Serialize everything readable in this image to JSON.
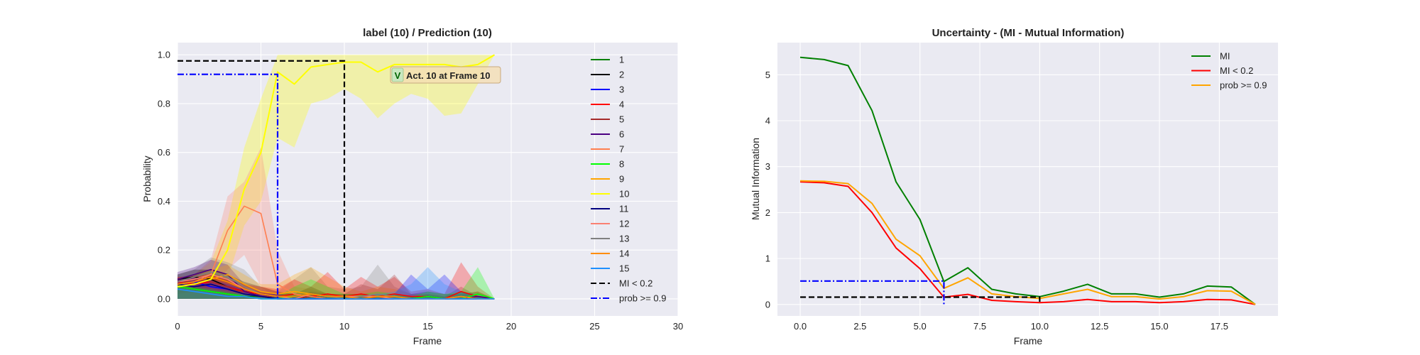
{
  "chart_data": [
    {
      "type": "line",
      "title": "label (10) / Prediction (10)",
      "xlabel": "Frame",
      "ylabel": "Probability",
      "xlim": [
        0,
        30
      ],
      "ylim": [
        -0.07,
        1.05
      ],
      "xticks": [
        "0",
        "5",
        "10",
        "15",
        "20",
        "25",
        "30"
      ],
      "yticks": [
        "0.0",
        "0.2",
        "0.4",
        "0.6",
        "0.8",
        "1.0"
      ],
      "grid": true,
      "legend_position": "right",
      "x": [
        0,
        1,
        2,
        3,
        4,
        5,
        6,
        7,
        8,
        9,
        10,
        11,
        12,
        13,
        14,
        15,
        16,
        17,
        18,
        19
      ],
      "series": [
        {
          "name": "1",
          "color": "#008000",
          "values": [
            0.05,
            0.04,
            0.03,
            0.02,
            0.01,
            0.01,
            0,
            0,
            0,
            0,
            0,
            0,
            0,
            0,
            0,
            0,
            0,
            0,
            0,
            0
          ]
        },
        {
          "name": "2",
          "color": "#000000",
          "values": [
            0.08,
            0.09,
            0.08,
            0.05,
            0.03,
            0.02,
            0.01,
            0,
            0.01,
            0,
            0,
            0,
            0,
            0,
            0,
            0,
            0,
            0,
            0,
            0
          ]
        },
        {
          "name": "3",
          "color": "#0000ff",
          "values": [
            0.06,
            0.07,
            0.05,
            0.04,
            0.02,
            0.01,
            0.01,
            0,
            0,
            0,
            0,
            0,
            0,
            0,
            0,
            0.01,
            0,
            0,
            0,
            0
          ]
        },
        {
          "name": "4",
          "color": "#ff0000",
          "values": [
            0.07,
            0.06,
            0.07,
            0.05,
            0.03,
            0.02,
            0.01,
            0.02,
            0.01,
            0.02,
            0.01,
            0.02,
            0.01,
            0.02,
            0.01,
            0.01,
            0,
            0.03,
            0.01,
            0
          ]
        },
        {
          "name": "5",
          "color": "#a52a2a",
          "values": [
            0.06,
            0.08,
            0.07,
            0.05,
            0.02,
            0.01,
            0.01,
            0,
            0.01,
            0,
            0,
            0.01,
            0,
            0.01,
            0,
            0,
            0,
            0.01,
            0,
            0
          ]
        },
        {
          "name": "6",
          "color": "#4b0082",
          "values": [
            0.08,
            0.1,
            0.12,
            0.1,
            0.03,
            0.01,
            0,
            0,
            0,
            0,
            0,
            0,
            0,
            0,
            0,
            0.01,
            0,
            0,
            0.01,
            0
          ]
        },
        {
          "name": "7",
          "color": "#ff7f50",
          "values": [
            0.06,
            0.07,
            0.1,
            0.28,
            0.38,
            0.35,
            0.06,
            0.02,
            0.01,
            0,
            0,
            0,
            0,
            0,
            0,
            0,
            0,
            0,
            0,
            0
          ]
        },
        {
          "name": "8",
          "color": "#00ff00",
          "values": [
            0.05,
            0.04,
            0.03,
            0.02,
            0.01,
            0,
            0,
            0.01,
            0.02,
            0.01,
            0,
            0,
            0.01,
            0,
            0,
            0.01,
            0,
            0,
            0.02,
            0
          ]
        },
        {
          "name": "9",
          "color": "#ffa500",
          "values": [
            0.05,
            0.06,
            0.08,
            0.1,
            0.06,
            0.03,
            0.02,
            0.03,
            0.02,
            0.01,
            0.01,
            0.01,
            0.01,
            0.01,
            0,
            0,
            0,
            0,
            0,
            0
          ]
        },
        {
          "name": "10",
          "color": "#ffff00",
          "values": [
            0.05,
            0.06,
            0.08,
            0.2,
            0.45,
            0.6,
            0.93,
            0.88,
            0.95,
            0.96,
            0.97,
            0.97,
            0.93,
            0.96,
            0.96,
            0.96,
            0.96,
            0.95,
            0.96,
            1.0
          ]
        },
        {
          "name": "11",
          "color": "#000080",
          "values": [
            0.06,
            0.05,
            0.06,
            0.04,
            0.02,
            0.01,
            0,
            0,
            0,
            0,
            0,
            0,
            0,
            0,
            0,
            0,
            0,
            0,
            0,
            0
          ]
        },
        {
          "name": "12",
          "color": "#fa8072",
          "values": [
            0.07,
            0.08,
            0.1,
            0.08,
            0.04,
            0.02,
            0.01,
            0,
            0.02,
            0.01,
            0.01,
            0.01,
            0.01,
            0,
            0,
            0,
            0,
            0.01,
            0,
            0
          ]
        },
        {
          "name": "13",
          "color": "#808080",
          "values": [
            0.07,
            0.09,
            0.11,
            0.09,
            0.05,
            0.02,
            0.01,
            0.01,
            0.02,
            0.01,
            0,
            0.01,
            0.02,
            0.01,
            0,
            0,
            0,
            0,
            0,
            0
          ]
        },
        {
          "name": "14",
          "color": "#ff8c00",
          "values": [
            0.06,
            0.07,
            0.09,
            0.07,
            0.04,
            0.02,
            0.01,
            0.01,
            0.02,
            0.01,
            0.01,
            0,
            0.01,
            0.01,
            0,
            0,
            0,
            0.01,
            0,
            0
          ]
        },
        {
          "name": "15",
          "color": "#1e90ff",
          "values": [
            0.04,
            0.03,
            0.02,
            0.01,
            0.01,
            0,
            0,
            0,
            0,
            0,
            0,
            0,
            0,
            0,
            0,
            0,
            0,
            0,
            0,
            0
          ]
        }
      ],
      "bands": [
        {
          "series": "10",
          "color": "#ffff00",
          "upper": [
            0.08,
            0.1,
            0.15,
            0.32,
            0.62,
            0.82,
            1.0,
            1.0,
            1.0,
            1.0,
            1.0,
            1.0,
            1.0,
            1.0,
            1.0,
            1.0,
            1.0,
            1.0,
            1.0,
            1.0
          ],
          "lower": [
            0.02,
            0.03,
            0.04,
            0.08,
            0.3,
            0.4,
            0.66,
            0.62,
            0.8,
            0.82,
            0.86,
            0.82,
            0.74,
            0.8,
            0.84,
            0.82,
            0.75,
            0.76,
            0.88,
            1.0
          ]
        },
        {
          "series": "7",
          "color": "#fa8072",
          "upper": [
            0.09,
            0.1,
            0.16,
            0.42,
            0.48,
            0.62,
            0.2,
            0.05,
            0.04,
            0.02,
            0.02,
            0.02,
            0.01,
            0,
            0,
            0,
            0,
            0,
            0,
            0
          ],
          "lower": [
            0.02,
            0.03,
            0.05,
            0.12,
            0.18,
            0.05,
            0,
            0,
            0,
            0,
            0,
            0,
            0,
            0,
            0,
            0,
            0,
            0,
            0,
            0
          ]
        },
        {
          "series": "13",
          "color": "#808080",
          "upper": [
            0.1,
            0.12,
            0.17,
            0.15,
            0.12,
            0.05,
            0.03,
            0.08,
            0.13,
            0.05,
            0.04,
            0.05,
            0.14,
            0.05,
            0.02,
            0.03,
            0.02,
            0.02,
            0.03,
            0
          ]
        },
        {
          "series": "6",
          "color": "#4b0082",
          "upper": [
            0.11,
            0.13,
            0.16,
            0.14,
            0.06,
            0.03,
            0.02,
            0.02,
            0.01,
            0.01,
            0,
            0.01,
            0,
            0,
            0.02,
            0.03,
            0.02,
            0.02,
            0.03,
            0
          ]
        },
        {
          "series": "2",
          "color": "#000000",
          "upper": [
            0.1,
            0.12,
            0.12,
            0.1,
            0.07,
            0.05,
            0.03,
            0.02,
            0.05,
            0.02,
            0.02,
            0.02,
            0.01,
            0.02,
            0.01,
            0.02,
            0.01,
            0.03,
            0.01,
            0
          ]
        },
        {
          "series": "9",
          "color": "#ffa500",
          "upper": [
            0.07,
            0.09,
            0.12,
            0.14,
            0.1,
            0.06,
            0.06,
            0.1,
            0.13,
            0.09,
            0.05,
            0.03,
            0.05,
            0.04,
            0.02,
            0.02,
            0.02,
            0.02,
            0.03,
            0
          ]
        },
        {
          "series": "4",
          "color": "#ff0000",
          "upper": [
            0.09,
            0.09,
            0.1,
            0.08,
            0.06,
            0.05,
            0.04,
            0.08,
            0.05,
            0.11,
            0.04,
            0.09,
            0.05,
            0.09,
            0.03,
            0.04,
            0.02,
            0.15,
            0.05,
            0
          ]
        },
        {
          "series": "5",
          "color": "#a52a2a",
          "upper": [
            0.08,
            0.1,
            0.1,
            0.08,
            0.04,
            0.03,
            0.02,
            0.01,
            0.03,
            0.02,
            0.02,
            0.06,
            0.04,
            0.1,
            0.02,
            0.02,
            0.01,
            0.05,
            0.01,
            0
          ]
        },
        {
          "series": "3",
          "color": "#0000ff",
          "upper": [
            0.08,
            0.09,
            0.08,
            0.06,
            0.04,
            0.02,
            0.02,
            0.01,
            0.01,
            0.01,
            0.01,
            0.01,
            0.02,
            0.02,
            0.1,
            0.04,
            0.1,
            0.03,
            0.01,
            0
          ]
        },
        {
          "series": "15",
          "color": "#1e90ff",
          "upper": [
            0.05,
            0.04,
            0.03,
            0.02,
            0.02,
            0.01,
            0.01,
            0.01,
            0.01,
            0.01,
            0.01,
            0.01,
            0.02,
            0.03,
            0.06,
            0.13,
            0.06,
            0.03,
            0.02,
            0
          ]
        },
        {
          "series": "8",
          "color": "#00ff00",
          "upper": [
            0.06,
            0.05,
            0.04,
            0.03,
            0.02,
            0.01,
            0.01,
            0.05,
            0.08,
            0.05,
            0.02,
            0.02,
            0.03,
            0.02,
            0.01,
            0.03,
            0.02,
            0.03,
            0.13,
            0
          ]
        }
      ],
      "threshold_lines": [
        {
          "name": "MI < 0.2",
          "color": "#000000",
          "style": "dashed",
          "x": 10,
          "y": 0.975
        },
        {
          "name": "prob >= 0.9",
          "color": "#0000ff",
          "style": "dashdot",
          "x": 6,
          "y": 0.92
        }
      ],
      "annotation": {
        "icon": "V",
        "text": "Act. 10 at Frame 10",
        "x": 13.7,
        "y": 0.905
      }
    },
    {
      "type": "line",
      "title": "Uncertainty - (MI - Mutual Information)",
      "xlabel": "Frame",
      "ylabel": "Mutual Information",
      "xlim": [
        -0.95,
        19.95
      ],
      "ylim": [
        -0.25,
        5.7
      ],
      "xticks": [
        "0.0",
        "2.5",
        "5.0",
        "7.5",
        "10.0",
        "12.5",
        "15.0",
        "17.5"
      ],
      "yticks": [
        "0",
        "1",
        "2",
        "3",
        "4",
        "5"
      ],
      "grid": true,
      "legend_position": "top-right",
      "x": [
        0,
        1,
        2,
        3,
        4,
        5,
        6,
        7,
        8,
        9,
        10,
        11,
        12,
        13,
        14,
        15,
        16,
        17,
        18,
        19
      ],
      "series": [
        {
          "name": "MI",
          "color": "#008000",
          "values": [
            5.38,
            5.33,
            5.2,
            4.22,
            2.67,
            1.85,
            0.5,
            0.8,
            0.33,
            0.23,
            0.17,
            0.29,
            0.44,
            0.23,
            0.23,
            0.16,
            0.23,
            0.4,
            0.38,
            0.0
          ]
        },
        {
          "name": "MI < 0.2",
          "color": "#ff0000",
          "values": [
            2.67,
            2.65,
            2.57,
            2.0,
            1.23,
            0.78,
            0.16,
            0.22,
            0.09,
            0.06,
            0.04,
            0.06,
            0.11,
            0.06,
            0.06,
            0.04,
            0.06,
            0.11,
            0.1,
            0.0
          ]
        },
        {
          "name": "prob >= 0.9",
          "color": "#ffa500",
          "values": [
            2.69,
            2.68,
            2.63,
            2.2,
            1.42,
            1.06,
            0.35,
            0.58,
            0.23,
            0.17,
            0.13,
            0.23,
            0.33,
            0.17,
            0.17,
            0.12,
            0.17,
            0.3,
            0.29,
            0.0
          ]
        }
      ],
      "threshold_lines": [
        {
          "color": "#000000",
          "style": "dashed",
          "x": 10,
          "y": 0.16
        },
        {
          "color": "#0000ff",
          "style": "dashdot",
          "x": 6,
          "y": 0.51
        }
      ]
    }
  ]
}
